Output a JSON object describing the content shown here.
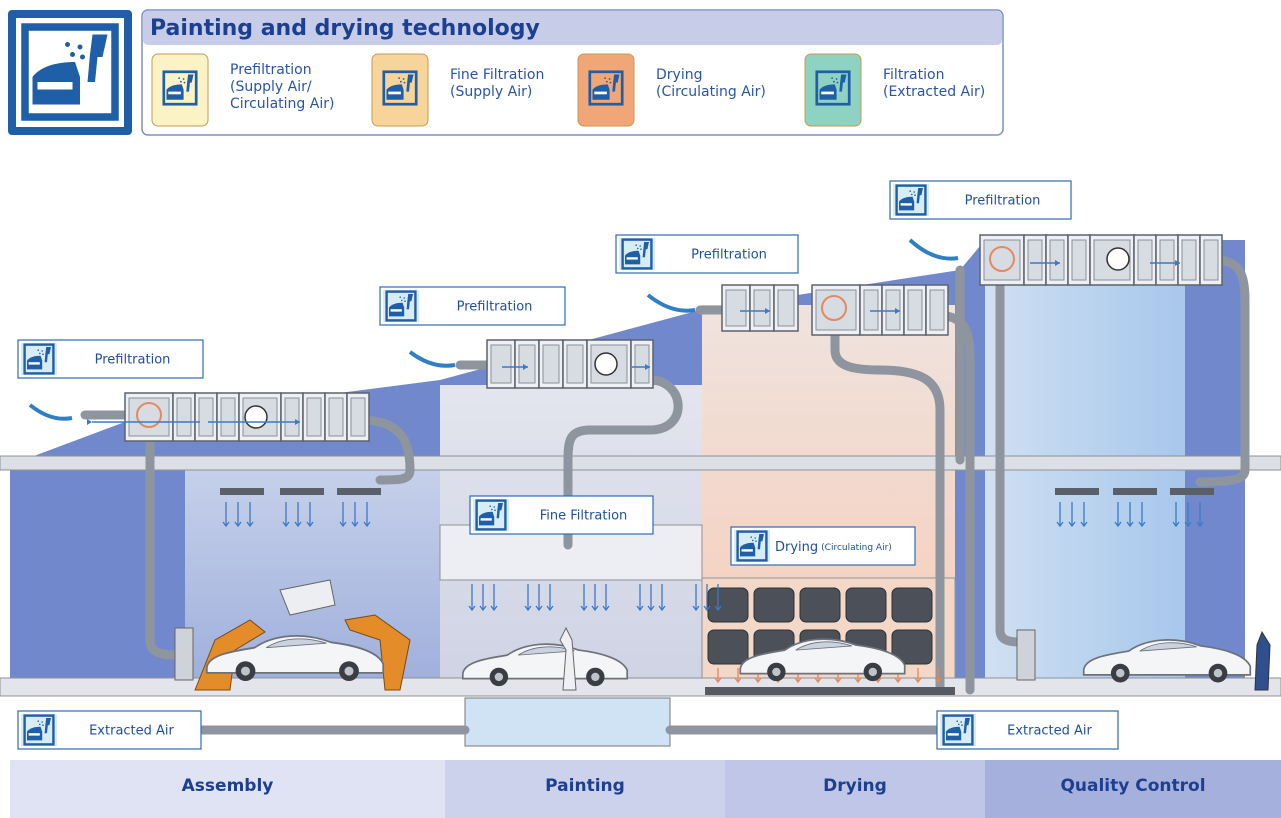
{
  "header": {
    "title": "Painting and drying technology"
  },
  "legend": [
    {
      "lines": [
        "Prefiltration",
        "(Supply Air/",
        "Circulating Air)"
      ]
    },
    {
      "lines": [
        "Fine Filtration",
        "(Supply Air)"
      ]
    },
    {
      "lines": [
        "Drying",
        "(Circulating Air)"
      ]
    },
    {
      "lines": [
        "Filtration",
        "(Extracted Air)"
      ]
    }
  ],
  "labels": [
    {
      "text": "Prefiltration"
    },
    {
      "text": "Prefiltration"
    },
    {
      "text": "Prefiltration"
    },
    {
      "text": "Prefiltration"
    },
    {
      "text": "Fine Filtration"
    },
    {
      "text": "Extracted Air"
    },
    {
      "text": "Extracted Air"
    }
  ],
  "drying_label": {
    "main": "Drying",
    "note": "(Circulating Air)"
  },
  "sections": [
    "Assembly",
    "Painting",
    "Drying",
    "Quality Control"
  ]
}
